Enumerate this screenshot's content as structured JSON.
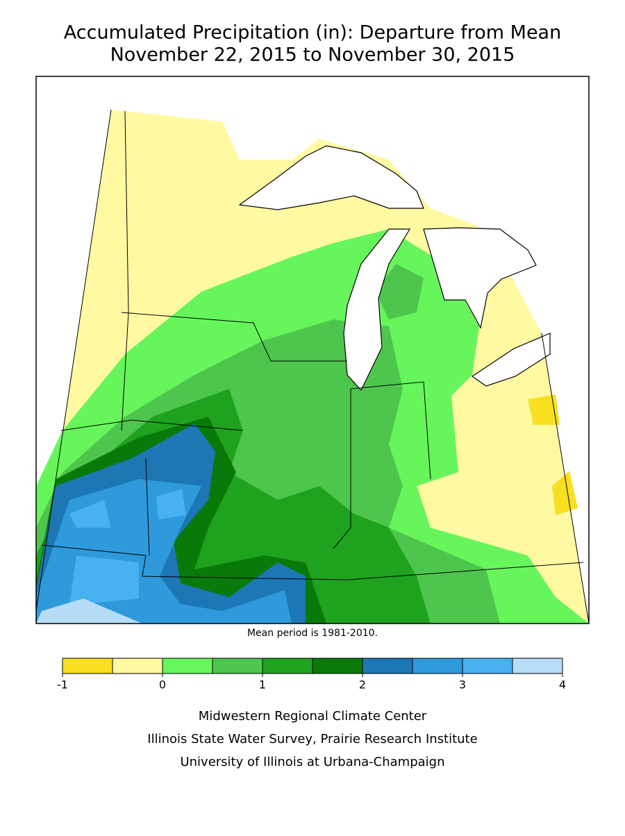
{
  "header": {
    "title_lines": [
      "Accumulated Precipitation (in): Departure from Mean",
      "November 22, 2015 to November 30, 2015"
    ]
  },
  "map": {
    "note": "Mean period is 1981-2010."
  },
  "legend": {
    "bins": [
      -1,
      -0.5,
      0,
      0.5,
      1,
      1.5,
      2,
      2.5,
      3,
      3.5,
      4
    ],
    "colors": [
      "#f8e021",
      "#fff9a2",
      "#66f65c",
      "#4ec64e",
      "#1fa31f",
      "#097a0a",
      "#1d77b5",
      "#2f9adb",
      "#48b1ef",
      "#b6dcf8"
    ],
    "ticks": [
      -1,
      0,
      1,
      2,
      3,
      4
    ]
  },
  "footer": {
    "credits": [
      "Midwestern Regional Climate Center",
      "Illinois State Water Survey, Prairie Research Institute",
      "University of Illinois at Urbana-Champaign"
    ]
  }
}
